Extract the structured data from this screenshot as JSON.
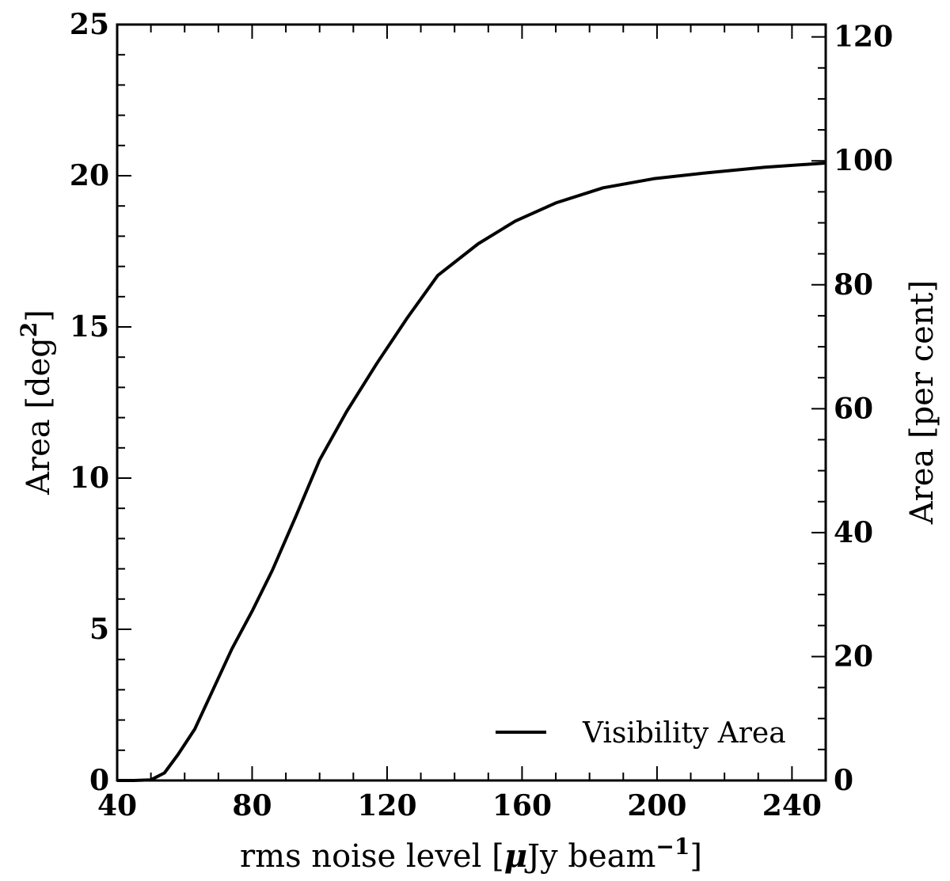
{
  "chart_data": {
    "type": "line",
    "xlabel": {
      "prefix": "rms noise level [",
      "mu": "μ",
      "unit": "Jy beam",
      "sup": "−1",
      "suffix": "]"
    },
    "ylabel_left": {
      "main": "Area [deg",
      "sup": "2",
      "close": "]"
    },
    "ylabel_right": "Area [per cent]",
    "xlim": [
      40,
      250
    ],
    "ylim": [
      0,
      25
    ],
    "y2lim": [
      0,
      122
    ],
    "xticks": [
      40,
      80,
      120,
      160,
      200,
      240
    ],
    "yticks": [
      0,
      5,
      10,
      15,
      20,
      25
    ],
    "y2ticks": [
      0,
      20,
      40,
      60,
      80,
      100,
      120
    ],
    "legend": {
      "position": "lower-right"
    },
    "series": [
      {
        "name": "Visibility Area",
        "color": "#000000",
        "x": [
          40,
          45,
          50,
          54,
          58,
          63,
          68,
          74,
          80,
          86,
          93,
          100,
          108,
          117,
          126,
          135,
          147,
          158,
          170,
          184,
          199,
          215,
          232,
          250
        ],
        "y": [
          0,
          0,
          0.02,
          0.25,
          0.85,
          1.7,
          2.9,
          4.35,
          5.6,
          6.95,
          8.75,
          10.6,
          12.2,
          13.8,
          15.3,
          16.7,
          17.75,
          18.5,
          19.1,
          19.6,
          19.9,
          20.1,
          20.28,
          20.42
        ]
      }
    ]
  }
}
